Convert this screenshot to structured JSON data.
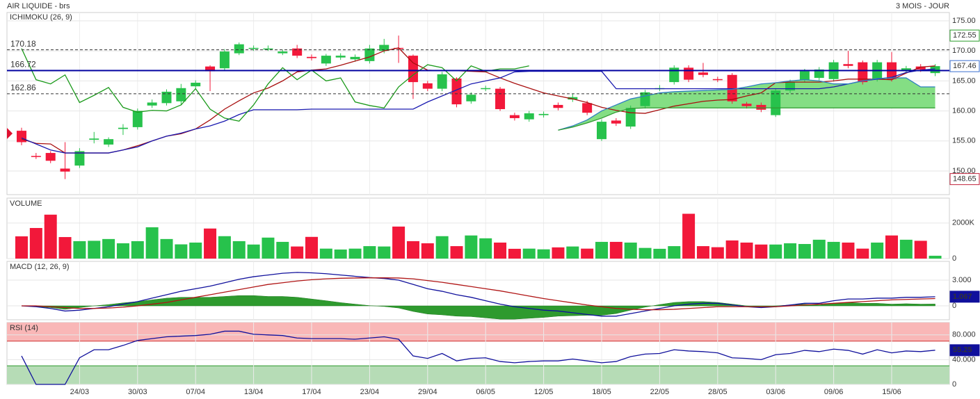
{
  "chart_data": [
    {
      "type": "candlestick",
      "title": "AIR LIQUIDE - brs",
      "period": "3 MOIS - JOUR",
      "indicator": "ICHIMOKU (26, 9)",
      "categories": [
        null,
        null,
        null,
        null,
        "24/03",
        null,
        null,
        null,
        "30/03",
        null,
        null,
        null,
        "07/04",
        null,
        null,
        null,
        "13/04",
        null,
        null,
        null,
        "17/04",
        null,
        null,
        null,
        "23/04",
        null,
        null,
        null,
        "29/04",
        null,
        null,
        null,
        "06/05",
        null,
        null,
        null,
        "12/05",
        null,
        null,
        null,
        "18/05",
        null,
        null,
        null,
        "22/05",
        null,
        null,
        null,
        "28/05",
        null,
        null,
        null,
        "03/06",
        null,
        null,
        null,
        "09/06",
        null,
        null,
        null,
        "15/06",
        null,
        null,
        null
      ],
      "open": [
        156.7,
        152.5,
        153.0,
        150.4,
        150.9,
        155.2,
        154.4,
        157.0,
        157.3,
        160.9,
        161.3,
        161.6,
        164.1,
        167.4,
        167.1,
        169.6,
        170.4,
        170.4,
        169.6,
        170.4,
        169.0,
        167.9,
        168.9,
        168.6,
        168.3,
        170.0,
        170.5,
        169.2,
        164.6,
        163.7,
        165.4,
        161.6,
        163.7,
        163.7,
        159.3,
        158.6,
        159.3,
        161.0,
        161.9,
        161.3,
        155.3,
        158.4,
        157.4,
        160.8,
        163.7,
        164.8,
        167.2,
        166.4,
        165.3,
        166.0,
        161.2,
        161.0,
        159.3,
        163.4,
        165.2,
        165.5,
        165.3,
        167.8,
        168.1,
        165.3,
        168.1,
        166.7,
        167.4,
        166.3
      ],
      "high": [
        157.2,
        153.0,
        153.3,
        154.8,
        153.8,
        156.5,
        155.6,
        157.8,
        160.4,
        161.9,
        163.6,
        164.5,
        165.1,
        167.6,
        170.3,
        171.4,
        170.9,
        170.9,
        170.2,
        171.0,
        169.4,
        169.5,
        169.6,
        169.4,
        171.0,
        172.0,
        172.55,
        169.4,
        165.0,
        166.5,
        165.6,
        163.1,
        164.2,
        164.0,
        159.7,
        160.0,
        159.9,
        161.4,
        162.8,
        161.7,
        158.6,
        158.8,
        160.9,
        163.5,
        164.3,
        167.6,
        167.6,
        168.0,
        165.7,
        166.3,
        161.5,
        161.4,
        163.8,
        165.2,
        167.0,
        167.3,
        168.5,
        170.0,
        168.4,
        168.5,
        169.8,
        167.5,
        167.8,
        167.8
      ],
      "low": [
        154.3,
        152.0,
        151.3,
        148.65,
        150.5,
        154.6,
        154.0,
        156.0,
        156.9,
        160.5,
        160.9,
        161.0,
        163.7,
        163.3,
        166.7,
        169.3,
        170.0,
        170.0,
        169.3,
        168.8,
        168.4,
        167.5,
        168.5,
        168.2,
        167.9,
        169.6,
        168.0,
        162.0,
        163.3,
        163.3,
        160.6,
        161.2,
        163.3,
        160.0,
        158.4,
        158.2,
        158.9,
        160.1,
        161.5,
        159.3,
        155.0,
        157.5,
        157.0,
        160.4,
        163.3,
        164.4,
        164.8,
        165.6,
        164.8,
        161.2,
        160.4,
        159.8,
        159.0,
        163.0,
        164.8,
        165.1,
        164.9,
        167.1,
        164.4,
        164.9,
        164.9,
        166.3,
        166.5,
        165.8
      ],
      "close": [
        154.8,
        152.4,
        151.7,
        149.9,
        153.3,
        155.4,
        155.3,
        157.2,
        160.0,
        161.4,
        163.2,
        163.8,
        164.7,
        166.6,
        169.9,
        171.1,
        170.5,
        170.4,
        169.9,
        169.2,
        168.8,
        169.2,
        169.2,
        169.0,
        170.4,
        171.0,
        170.4,
        164.8,
        163.7,
        166.1,
        161.1,
        162.7,
        163.8,
        160.3,
        158.8,
        159.6,
        159.5,
        160.5,
        162.3,
        159.7,
        158.2,
        157.9,
        160.5,
        163.1,
        163.8,
        167.2,
        165.2,
        166.0,
        165.2,
        161.6,
        160.8,
        160.2,
        163.4,
        164.8,
        166.6,
        166.9,
        168.1,
        167.5,
        164.8,
        168.1,
        165.3,
        167.1,
        166.9,
        167.46
      ],
      "up_color": "#27c24c",
      "down_color": "#f2183a",
      "cloud_color": "#7ddc7d",
      "series": [
        {
          "color": "#a80f0f",
          "values": [
            155.3,
            154.6,
            154.5,
            153.0,
            153.0,
            153.0,
            153.0,
            153.5,
            154.2,
            155.0,
            155.8,
            156.2,
            157.0,
            158.5,
            160.3,
            161.7,
            163.0,
            163.8,
            165.0,
            166.5,
            166.8,
            167.0,
            167.6,
            168.3,
            169.0,
            170.0,
            170.5,
            168.0,
            166.8,
            166.7,
            166.7,
            166.6,
            166.5,
            165.5,
            164.6,
            163.8,
            163.0,
            162.5,
            162.0,
            161.4,
            160.6,
            160.1,
            159.7,
            159.6,
            160.2,
            160.8,
            161.2,
            161.6,
            161.8,
            161.9,
            162.5,
            163.0,
            164.7,
            164.8,
            164.8,
            164.8,
            165.0,
            165.3,
            165.3,
            165.3,
            165.2,
            166.3,
            167.3,
            167.5
          ]
        },
        {
          "color": "#1a1ab0",
          "values": [
            155.5,
            154.5,
            153.5,
            153.0,
            153.0,
            153.0,
            153.0,
            153.5,
            154.0,
            155.0,
            155.8,
            156.3,
            157.0,
            157.5,
            158.3,
            159.4,
            160.2,
            160.2,
            160.2,
            160.2,
            160.3,
            160.3,
            160.3,
            160.3,
            160.3,
            160.3,
            160.3,
            160.3,
            161.5,
            162.5,
            163.5,
            164.5,
            165.0,
            165.5,
            166.5,
            166.6,
            166.6,
            166.6,
            166.6,
            166.6,
            166.6,
            163.7,
            163.7,
            163.7,
            163.7,
            163.7,
            163.7,
            163.7,
            163.7,
            163.7,
            163.7,
            163.7,
            163.7,
            163.7,
            163.7,
            163.7,
            164.0,
            164.5,
            165.0,
            165.3,
            165.6,
            166.4,
            166.8,
            167.0
          ]
        },
        {
          "color": "#1a9a1a",
          "values": [
            170.4,
            165.2,
            164.5,
            166.0,
            161.4,
            162.6,
            163.9,
            160.6,
            159.8,
            160.1,
            160.0,
            161.0,
            163.7,
            160.3,
            158.8,
            158.3,
            161.0,
            164.5,
            167.2,
            165.2,
            166.8,
            165.0,
            165.5,
            161.5,
            160.9,
            160.5,
            164.0,
            166.0,
            167.7,
            167.2,
            165.0,
            167.5,
            166.6,
            167.0,
            167.0,
            167.5,
            null,
            null,
            null,
            null,
            null,
            null,
            null,
            null,
            null,
            null,
            null,
            null,
            null,
            null,
            null,
            null,
            null,
            null,
            null,
            null,
            null,
            null,
            null,
            null,
            null,
            null,
            null,
            null
          ]
        },
        {
          "color": "#2e7fc0",
          "values": [
            null,
            null,
            null,
            null,
            null,
            null,
            null,
            null,
            null,
            null,
            null,
            null,
            null,
            null,
            null,
            null,
            null,
            null,
            null,
            null,
            null,
            null,
            null,
            null,
            null,
            null,
            null,
            null,
            null,
            null,
            null,
            null,
            null,
            null,
            null,
            null,
            null,
            156.8,
            157.5,
            158.5,
            160.0,
            161.0,
            162.0,
            162.5,
            163.0,
            163.2,
            163.3,
            163.4,
            163.5,
            163.6,
            164.0,
            164.5,
            164.7,
            165.0,
            165.2,
            165.0,
            164.5,
            164.5,
            165.0,
            165.4,
            165.5,
            165.5,
            164.0,
            164.0
          ]
        },
        {
          "color": "#2f9a2f",
          "values": [
            null,
            null,
            null,
            null,
            null,
            null,
            null,
            null,
            null,
            null,
            null,
            null,
            null,
            null,
            null,
            null,
            null,
            null,
            null,
            null,
            null,
            null,
            null,
            null,
            null,
            null,
            null,
            null,
            null,
            null,
            null,
            null,
            null,
            null,
            null,
            null,
            null,
            156.8,
            157.3,
            158.0,
            158.8,
            159.8,
            160.4,
            160.5,
            160.5,
            160.5,
            160.5,
            160.5,
            160.5,
            160.5,
            160.5,
            160.5,
            160.5,
            160.5,
            160.5,
            160.5,
            160.5,
            160.5,
            160.5,
            160.5,
            160.5,
            160.5,
            160.5,
            160.5
          ]
        }
      ],
      "ylim": [
        146.06,
        176.39
      ],
      "yticks": [
        {
          "value": 175,
          "label": "175.00"
        },
        {
          "value": 170,
          "label": "170.00"
        },
        {
          "value": 165,
          "label": "165.00"
        },
        {
          "value": 160,
          "label": "160.00"
        },
        {
          "value": 155,
          "label": "155.00"
        },
        {
          "value": 150,
          "label": "150.00"
        }
      ],
      "reference_lines": [
        {
          "value": 170.18,
          "style": "dashed",
          "color": "#333333"
        },
        {
          "value": 166.72,
          "style": "solid",
          "color": "#0000a0"
        },
        {
          "value": 162.86,
          "style": "dashed",
          "color": "#333333"
        }
      ],
      "badges": [
        {
          "value": 172.55,
          "color": "#2a9d2a"
        },
        {
          "value": 167.46,
          "color": "#3a6fd0"
        },
        {
          "value": 148.65,
          "color": "#c0203a"
        }
      ],
      "grid": true
    },
    {
      "type": "bar",
      "title": "VOLUME",
      "title_color": "#1a9a1a",
      "values": [
        1250,
        1720,
        2470,
        1210,
        980,
        1000,
        1100,
        860,
        980,
        1760,
        1100,
        800,
        900,
        1690,
        1260,
        980,
        790,
        1180,
        940,
        680,
        1220,
        560,
        510,
        560,
        700,
        680,
        1800,
        980,
        860,
        1260,
        700,
        1300,
        1140,
        900,
        550,
        560,
        520,
        630,
        680,
        560,
        940,
        940,
        900,
        600,
        550,
        700,
        2520,
        700,
        640,
        1020,
        900,
        790,
        790,
        860,
        820,
        1060,
        940,
        900,
        560,
        900,
        1300,
        1060,
        1000,
        160
      ],
      "ylim": [
        0,
        3400
      ],
      "yticks": [
        {
          "value": 2000,
          "label": "2000K"
        },
        0
      ],
      "grid": true
    },
    {
      "type": "line",
      "title": "MACD (12, 26, 9)",
      "title_color": "#1a1ab0",
      "series": [
        {
          "color": "#2e9a2e",
          "style": "area",
          "values": [
            0,
            -0.1,
            -0.2,
            -0.4,
            -0.2,
            0,
            0.15,
            0.35,
            0.5,
            0.7,
            0.9,
            1.0,
            1.0,
            1.0,
            1.1,
            1.2,
            1.2,
            1.1,
            1.1,
            1.0,
            0.8,
            0.6,
            0.38,
            0.2,
            0.03,
            -0.07,
            -0.25,
            -0.65,
            -0.95,
            -1.05,
            -1.2,
            -1.25,
            -1.4,
            -1.55,
            -1.55,
            -1.45,
            -1.35,
            -1.2,
            -1.15,
            -1.1,
            -1.1,
            -0.9,
            -0.5,
            -0.15,
            0.15,
            0.4,
            0.5,
            0.5,
            0.4,
            0.2,
            0,
            -0.1,
            0,
            0.1,
            0.2,
            0.1,
            0.3,
            0.4,
            0.3,
            0.3,
            0.2,
            0.25,
            0.2,
            0.217
          ]
        },
        {
          "color": "#10109c",
          "values": [
            0,
            -0.1,
            -0.3,
            -0.6,
            -0.5,
            -0.3,
            -0.1,
            0.2,
            0.5,
            0.9,
            1.3,
            1.7,
            2.0,
            2.3,
            2.7,
            3.1,
            3.4,
            3.6,
            3.8,
            3.9,
            3.85,
            3.75,
            3.6,
            3.45,
            3.3,
            3.2,
            3.0,
            2.5,
            2.0,
            1.7,
            1.3,
            1.0,
            0.6,
            0.2,
            -0.1,
            -0.3,
            -0.5,
            -0.6,
            -0.8,
            -1.0,
            -1.2,
            -1.2,
            -0.9,
            -0.6,
            -0.3,
            0.0,
            0.2,
            0.3,
            0.3,
            0.1,
            -0.1,
            -0.2,
            -0.1,
            0.1,
            0.3,
            0.3,
            0.6,
            0.8,
            0.8,
            0.9,
            0.9,
            1.0,
            1.0,
            1.067
          ]
        },
        {
          "color": "#b01515",
          "values": [
            0,
            0,
            -0.1,
            -0.2,
            -0.3,
            -0.3,
            -0.25,
            -0.15,
            0,
            0.2,
            0.4,
            0.7,
            1.0,
            1.3,
            1.6,
            1.9,
            2.2,
            2.5,
            2.7,
            2.9,
            3.05,
            3.15,
            3.22,
            3.25,
            3.27,
            3.27,
            3.25,
            3.15,
            2.95,
            2.75,
            2.5,
            2.25,
            2.0,
            1.75,
            1.45,
            1.15,
            0.85,
            0.6,
            0.35,
            0.1,
            -0.1,
            -0.3,
            -0.4,
            -0.45,
            -0.45,
            -0.4,
            -0.3,
            -0.2,
            -0.1,
            -0.1,
            -0.1,
            -0.1,
            -0.1,
            0,
            0.1,
            0.2,
            0.3,
            0.4,
            0.5,
            0.6,
            0.7,
            0.75,
            0.8,
            0.85
          ]
        }
      ],
      "ylim": [
        -1.62,
        5.19
      ],
      "yticks": [
        {
          "value": 3,
          "label": "3.000"
        },
        0
      ],
      "badges": [
        {
          "value": 1.067,
          "color": "#10109c"
        }
      ],
      "grid": true
    },
    {
      "type": "line",
      "title": "RSI (14)",
      "title_color": "#1a1ab0",
      "zones": [
        {
          "from": 70,
          "to": 100,
          "color": "#f9b7b7",
          "line": "#d03030"
        },
        {
          "from": 0,
          "to": 30,
          "color": "#b6dcb6",
          "line": "#2e9a2e"
        }
      ],
      "series": [
        {
          "color": "#10109c",
          "values": [
            46,
            0,
            0,
            0,
            43,
            56,
            56,
            63,
            71,
            74,
            77,
            78,
            79,
            81,
            86,
            86,
            81,
            80,
            79,
            75,
            74,
            74,
            74,
            73,
            75,
            77,
            73,
            46,
            42,
            50,
            38,
            42,
            43,
            37,
            35,
            37,
            38,
            38,
            41,
            38,
            35,
            37,
            45,
            49,
            50,
            56,
            54,
            53,
            51,
            43,
            42,
            40,
            48,
            50,
            55,
            53,
            57,
            55,
            49,
            56,
            51,
            54,
            53,
            55.25
          ]
        }
      ],
      "ylim": [
        0,
        100
      ],
      "yticks": [
        {
          "value": 80,
          "label": "80.000"
        },
        {
          "value": 40,
          "label": "40.000"
        },
        0
      ],
      "badges": [
        {
          "value": 55.25,
          "color": "#10109c"
        }
      ],
      "grid": true
    }
  ]
}
